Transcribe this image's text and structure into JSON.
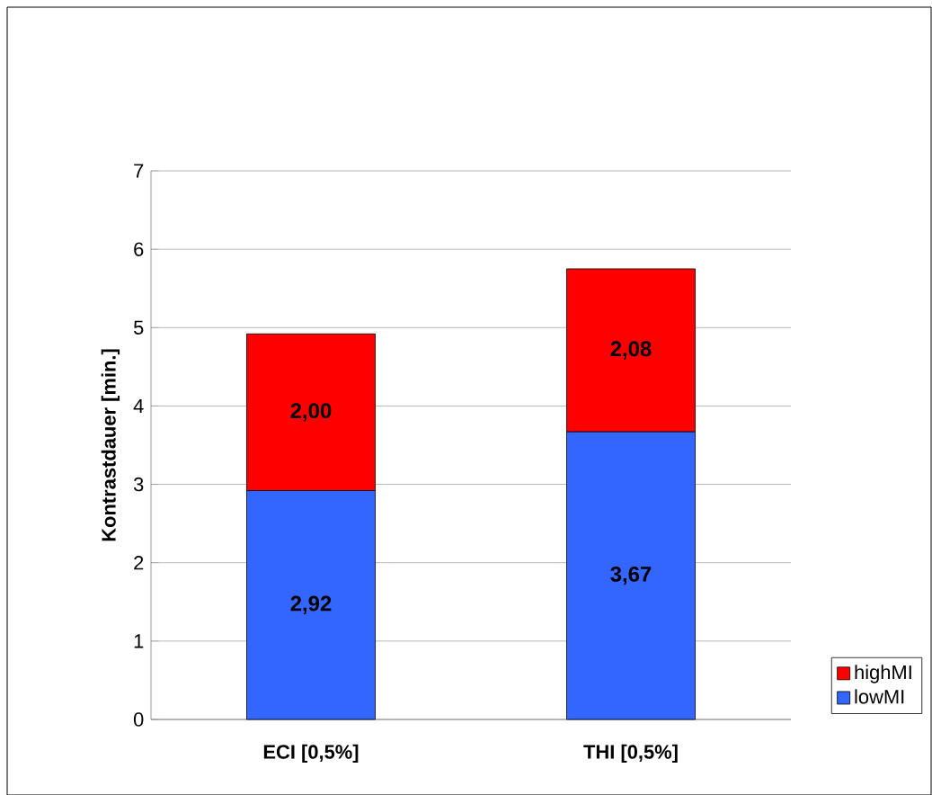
{
  "chart_data": {
    "type": "bar",
    "stacked": true,
    "ylabel": "Kontrastdauer [min.]",
    "categories": [
      "ECI [0,5%]",
      "THI  [0,5%]"
    ],
    "series": [
      {
        "name": "lowMI",
        "color": "#3366ff",
        "values": [
          2.92,
          3.67
        ],
        "value_labels": [
          "2,92",
          "3,67"
        ]
      },
      {
        "name": "highMI",
        "color": "#ff0000",
        "values": [
          2.0,
          2.08
        ],
        "value_labels": [
          "2,00",
          "2,08"
        ]
      }
    ],
    "ylim": [
      0,
      7
    ],
    "yticks": [
      0,
      1,
      2,
      3,
      4,
      5,
      6,
      7
    ],
    "grid": "y",
    "legend": "bottom right"
  }
}
